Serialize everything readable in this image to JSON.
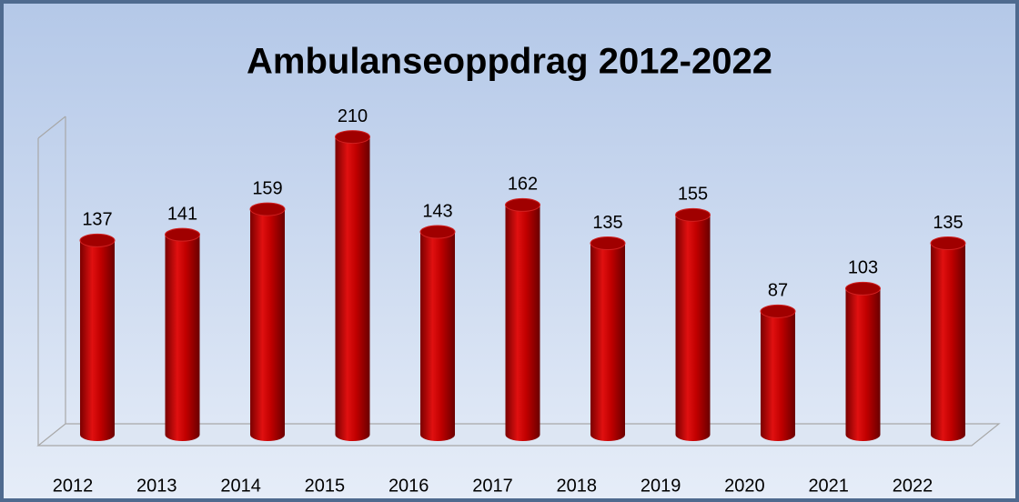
{
  "chart_data": {
    "type": "bar",
    "title": "Ambulanseoppdrag 2012-2022",
    "categories": [
      "2012",
      "2013",
      "2014",
      "2015",
      "2016",
      "2017",
      "2018",
      "2019",
      "2020",
      "2021",
      "2022"
    ],
    "values": [
      137,
      141,
      159,
      210,
      143,
      162,
      135,
      155,
      87,
      103,
      135
    ],
    "color": "#c00000",
    "ylim": [
      0,
      220
    ]
  }
}
